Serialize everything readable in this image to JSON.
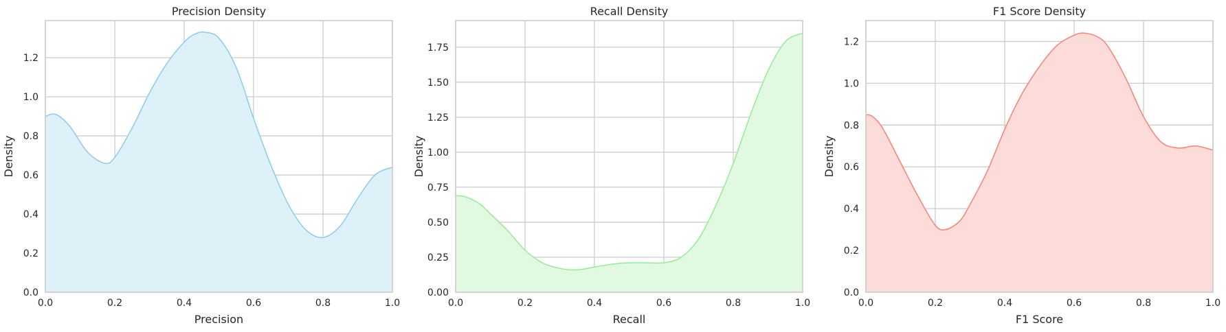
{
  "chart_data": [
    {
      "type": "area",
      "title": "Precision Density",
      "xlabel": "Precision",
      "ylabel": "Density",
      "xlim": [
        0,
        1
      ],
      "ylim": [
        0,
        1.39
      ],
      "xticks": [
        "0.0",
        "0.2",
        "0.4",
        "0.6",
        "0.8",
        "1.0"
      ],
      "yticks": [
        "0.0",
        "0.2",
        "0.4",
        "0.6",
        "0.8",
        "1.0",
        "1.2"
      ],
      "grid": true,
      "color": "#87CEEB",
      "fill_color": "#DEF0F8",
      "x": [
        0.0,
        0.03,
        0.07,
        0.12,
        0.17,
        0.2,
        0.25,
        0.3,
        0.35,
        0.4,
        0.43,
        0.46,
        0.5,
        0.55,
        0.6,
        0.65,
        0.7,
        0.75,
        0.8,
        0.85,
        0.9,
        0.95,
        1.0
      ],
      "y": [
        0.9,
        0.91,
        0.85,
        0.72,
        0.66,
        0.69,
        0.84,
        1.02,
        1.17,
        1.28,
        1.32,
        1.33,
        1.3,
        1.15,
        0.89,
        0.65,
        0.45,
        0.32,
        0.28,
        0.34,
        0.48,
        0.6,
        0.64
      ]
    },
    {
      "type": "area",
      "title": "Recall Density",
      "xlabel": "Recall",
      "ylabel": "Density",
      "xlim": [
        0,
        1
      ],
      "ylim": [
        0,
        1.94
      ],
      "xticks": [
        "0.0",
        "0.2",
        "0.4",
        "0.6",
        "0.8",
        "1.0"
      ],
      "yticks": [
        "0.00",
        "0.25",
        "0.50",
        "0.75",
        "1.00",
        "1.25",
        "1.50",
        "1.75"
      ],
      "grid": true,
      "color": "#90EE90",
      "fill_color": "#E0F9E0",
      "x": [
        0.0,
        0.03,
        0.07,
        0.1,
        0.15,
        0.2,
        0.25,
        0.3,
        0.35,
        0.4,
        0.45,
        0.5,
        0.55,
        0.6,
        0.65,
        0.7,
        0.75,
        0.8,
        0.85,
        0.9,
        0.95,
        1.0
      ],
      "y": [
        0.69,
        0.68,
        0.63,
        0.56,
        0.44,
        0.3,
        0.21,
        0.17,
        0.16,
        0.18,
        0.2,
        0.21,
        0.21,
        0.21,
        0.25,
        0.38,
        0.62,
        0.92,
        1.27,
        1.58,
        1.79,
        1.85
      ]
    },
    {
      "type": "area",
      "title": "F1 Score Density",
      "xlabel": "F1 Score",
      "ylabel": "Density",
      "xlim": [
        0,
        1
      ],
      "ylim": [
        0,
        1.3
      ],
      "xticks": [
        "0.0",
        "0.2",
        "0.4",
        "0.6",
        "0.8",
        "1.0"
      ],
      "yticks": [
        "0.0",
        "0.2",
        "0.4",
        "0.6",
        "0.8",
        "1.0",
        "1.2"
      ],
      "grid": true,
      "color": "#FA8072",
      "fill_color": "#FCDCD8",
      "x": [
        0.0,
        0.02,
        0.05,
        0.1,
        0.15,
        0.2,
        0.23,
        0.27,
        0.3,
        0.35,
        0.4,
        0.45,
        0.5,
        0.55,
        0.6,
        0.63,
        0.67,
        0.7,
        0.75,
        0.8,
        0.85,
        0.9,
        0.95,
        1.0
      ],
      "y": [
        0.85,
        0.84,
        0.78,
        0.62,
        0.46,
        0.32,
        0.3,
        0.34,
        0.42,
        0.58,
        0.78,
        0.95,
        1.08,
        1.18,
        1.23,
        1.24,
        1.22,
        1.17,
        1.02,
        0.84,
        0.72,
        0.69,
        0.7,
        0.68
      ]
    }
  ]
}
